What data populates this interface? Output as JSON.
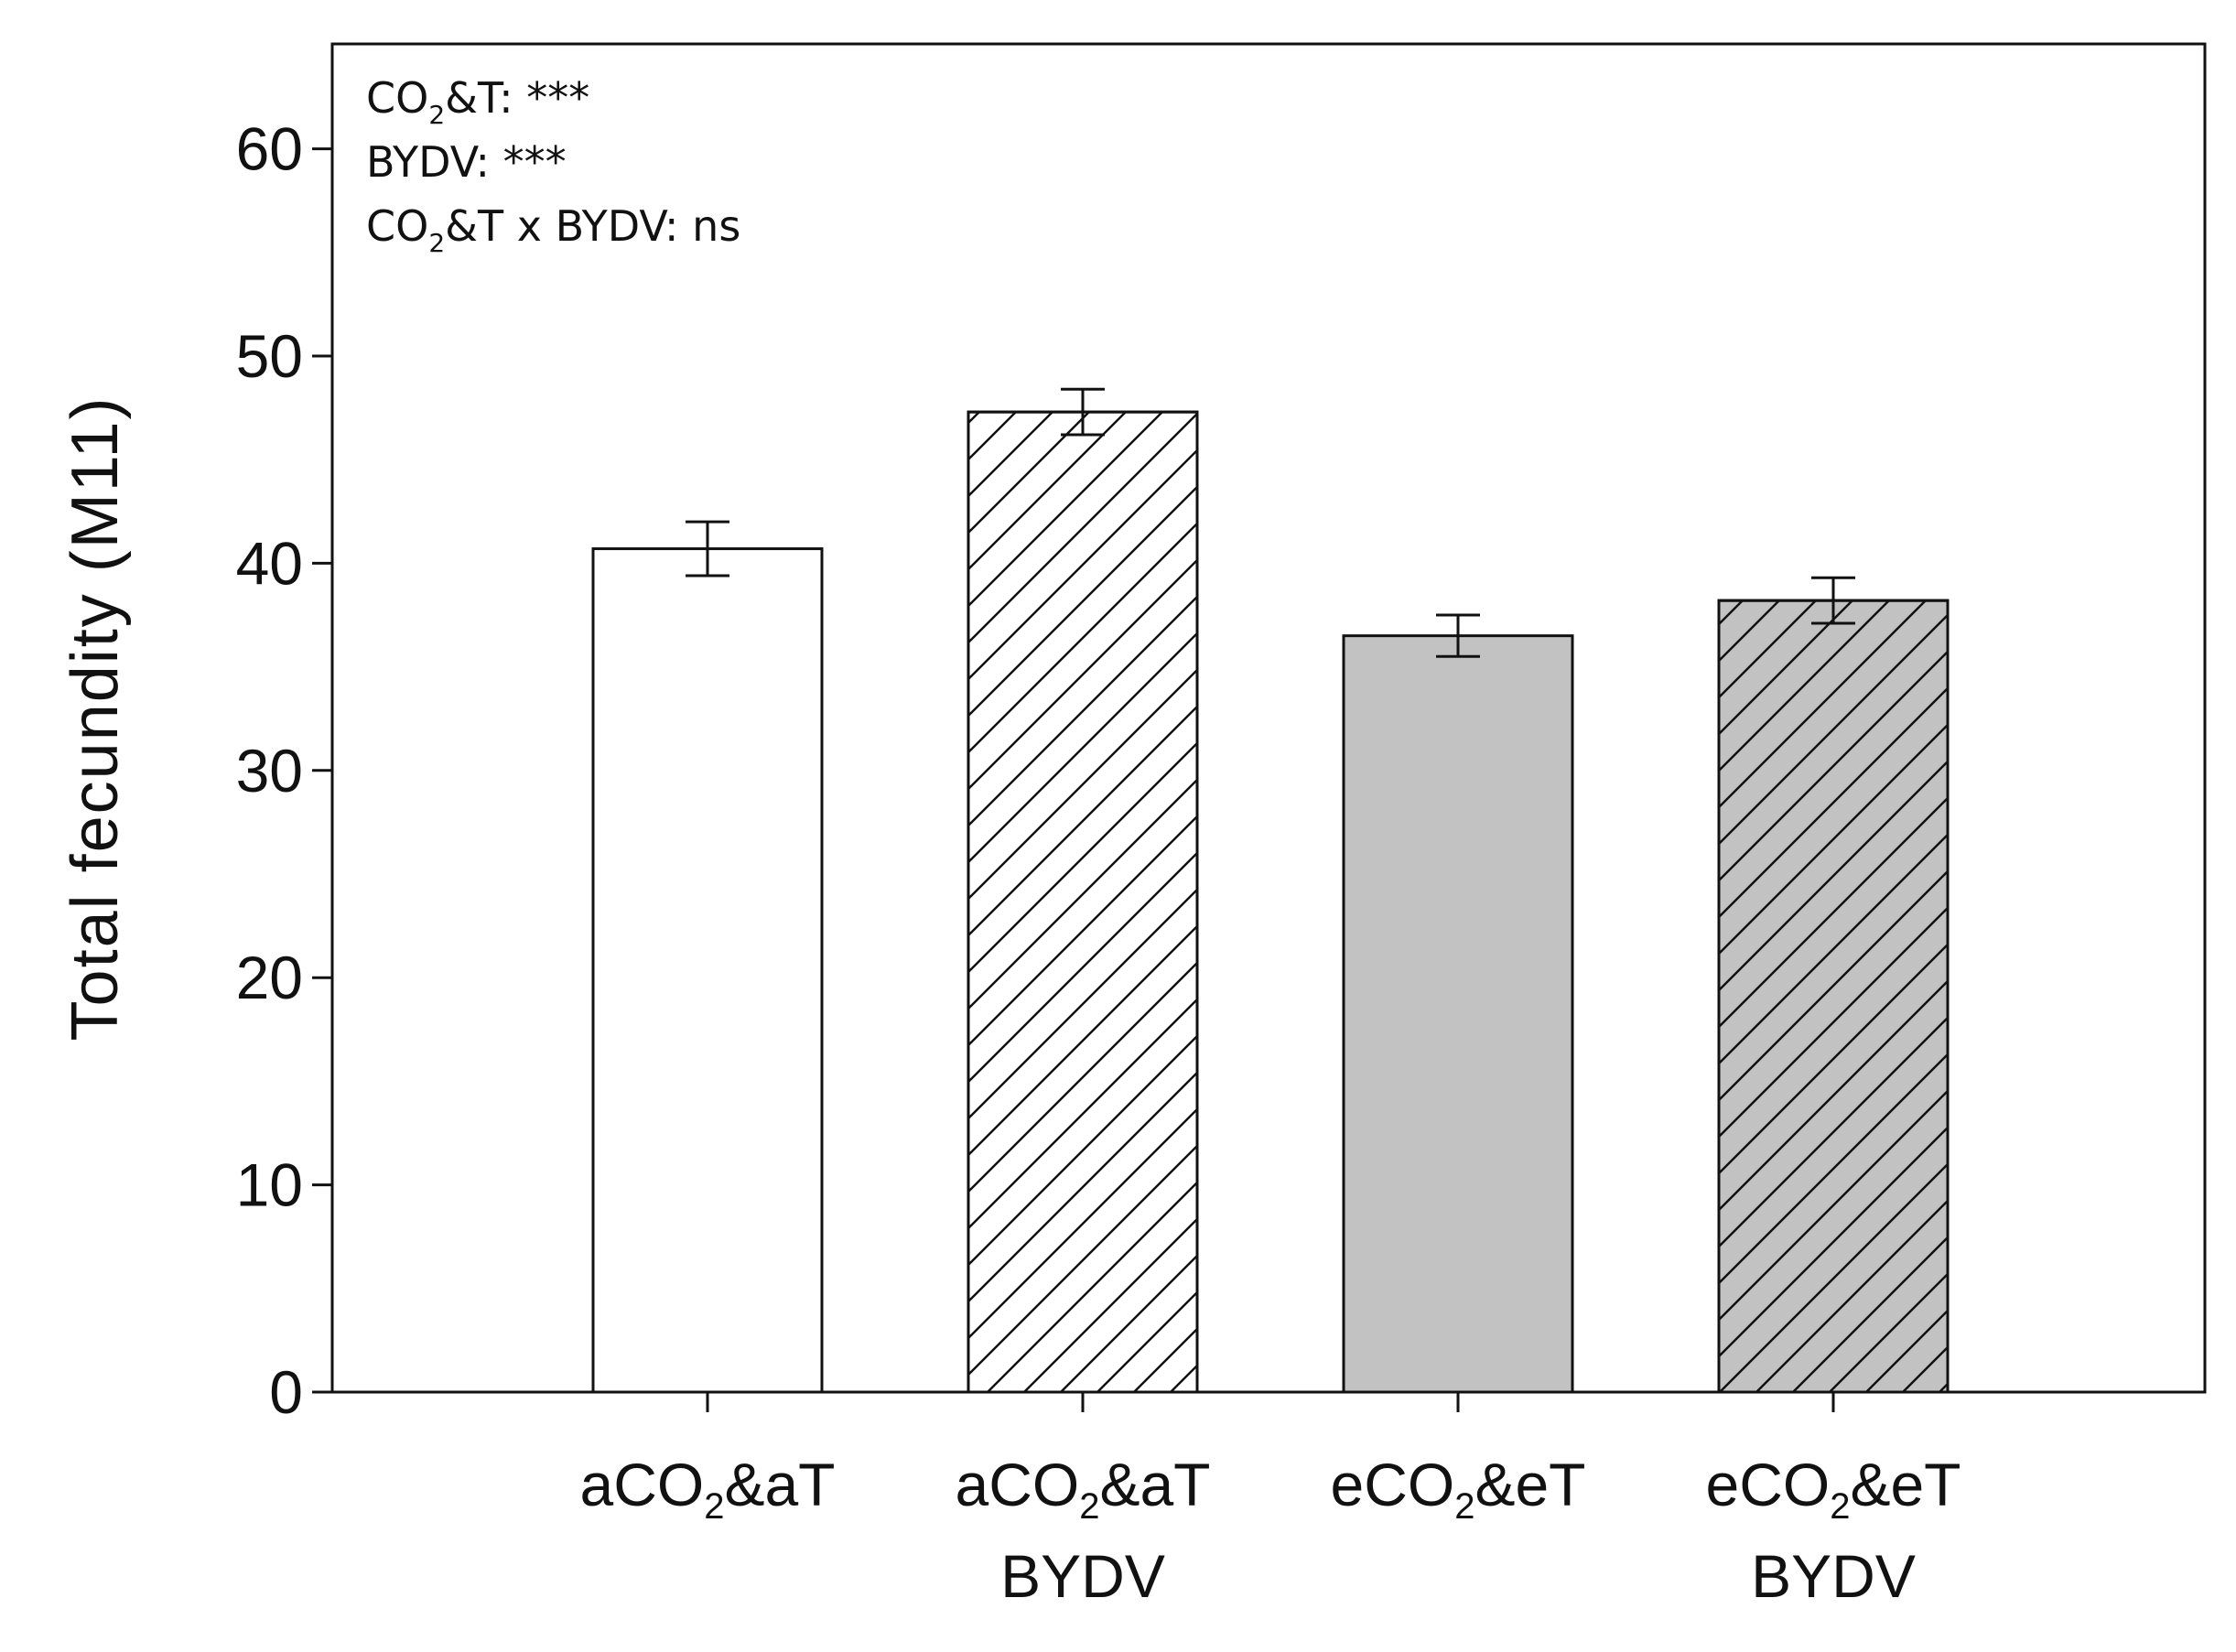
{
  "chart_data": {
    "type": "bar",
    "title": "",
    "xlabel": "",
    "ylabel": "Total fecundity (M11)",
    "ylim": [
      0,
      65
    ],
    "yticks": [
      0,
      10,
      20,
      30,
      40,
      50,
      60
    ],
    "grid": false,
    "categories": [
      {
        "line1": "aCO",
        "sub": "2",
        "line1_after": "&aT",
        "line2": ""
      },
      {
        "line1": "aCO",
        "sub": "2",
        "line1_after": "&aT",
        "line2": "BYDV"
      },
      {
        "line1": "eCO",
        "sub": "2",
        "line1_after": "&eT",
        "line2": ""
      },
      {
        "line1": "eCO",
        "sub": "2",
        "line1_after": "&eT",
        "line2": "BYDV"
      }
    ],
    "values": [
      40.7,
      47.3,
      36.5,
      38.2
    ],
    "errors": [
      1.3,
      1.1,
      1.0,
      1.1
    ],
    "fills": [
      "#ffffff",
      "#ffffff",
      "#c2c2c2",
      "#c2c2c2"
    ],
    "hatched": [
      false,
      true,
      false,
      true
    ],
    "edge_color": "#111111",
    "annotations": [
      {
        "pre": "CO",
        "sub": "2",
        "post": "&T: ***"
      },
      {
        "pre": "BYDV: ***",
        "sub": "",
        "post": ""
      },
      {
        "pre": "CO",
        "sub": "2",
        "post": "&T x BYDV: ns"
      }
    ]
  }
}
